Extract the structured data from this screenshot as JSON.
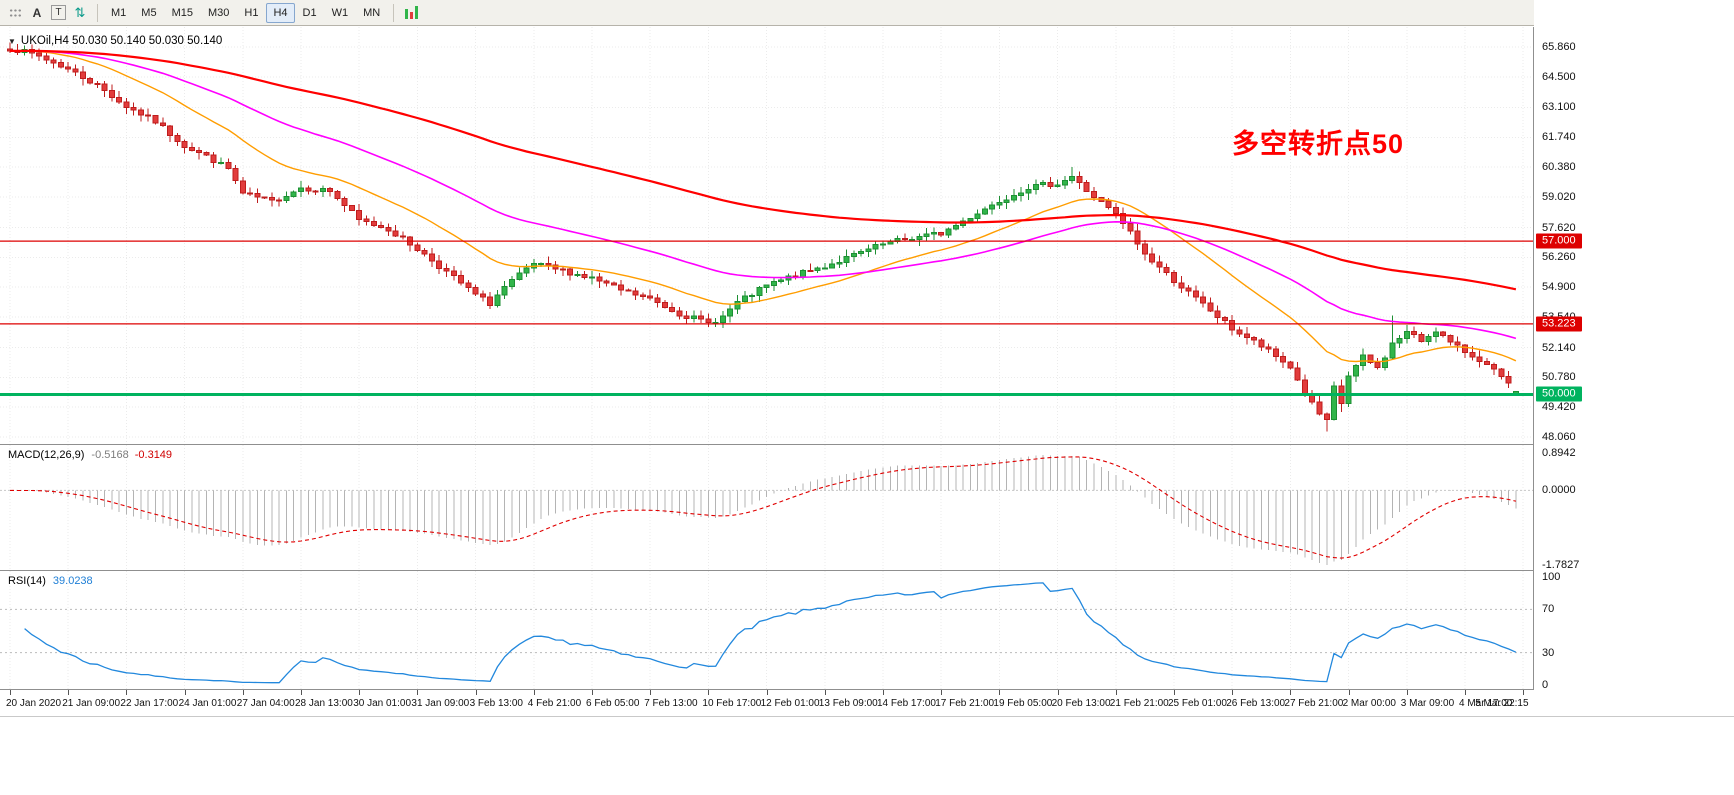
{
  "toolbar": {
    "tools": [
      {
        "name": "grid-handle-icon",
        "glyph": ""
      },
      {
        "name": "annotation-tool-button",
        "glyph": "A"
      },
      {
        "name": "text-frame-tool-button",
        "glyph": "T"
      },
      {
        "name": "sort-arrows-icon",
        "glyph": "⇅"
      }
    ],
    "timeframes": [
      "M1",
      "M5",
      "M15",
      "M30",
      "H1",
      "H4",
      "D1",
      "W1",
      "MN"
    ],
    "active_timeframe": "H4"
  },
  "chart_data": {
    "type": "candlestick",
    "symbol": "UKOil",
    "timeframe": "H4",
    "title": "UKOil,H4  50.030 50.140 50.030 50.140",
    "current_ohlc": {
      "open": 50.03,
      "high": 50.14,
      "low": 50.03,
      "close": 50.14
    },
    "bar_count": 208,
    "bars_per_x_label": 8,
    "x_axis_labels": [
      "20 Jan 2020",
      "21 Jan 09:00",
      "22 Jan 17:00",
      "24 Jan 01:00",
      "27 Jan 04:00",
      "28 Jan 13:00",
      "30 Jan 01:00",
      "31 Jan 09:00",
      "3 Feb 13:00",
      "4 Feb 21:00",
      "6 Feb 05:00",
      "7 Feb 13:00",
      "10 Feb 17:00",
      "12 Feb 01:00",
      "13 Feb 09:00",
      "14 Feb 17:00",
      "17 Feb 21:00",
      "19 Feb 05:00",
      "20 Feb 13:00",
      "21 Feb 21:00",
      "25 Feb 01:00",
      "26 Feb 13:00",
      "27 Feb 21:00",
      "2 Mar 00:00",
      "3 Mar 09:00",
      "4 Mar 17:00",
      "5 Mar 22:15"
    ],
    "y_axis_labels": [
      65.86,
      64.5,
      63.1,
      61.74,
      60.38,
      59.02,
      57.62,
      56.26,
      54.9,
      53.54,
      52.14,
      50.78,
      49.42,
      48.06
    ],
    "close_path_anchors": [
      [
        0,
        65.8
      ],
      [
        4,
        65.45
      ],
      [
        8,
        64.85
      ],
      [
        12,
        64.1
      ],
      [
        16,
        63.15
      ],
      [
        20,
        62.45
      ],
      [
        24,
        61.35
      ],
      [
        28,
        60.7
      ],
      [
        30,
        60.3
      ],
      [
        32,
        59.15
      ],
      [
        36,
        58.8
      ],
      [
        40,
        59.45
      ],
      [
        44,
        59.3
      ],
      [
        48,
        57.95
      ],
      [
        52,
        57.55
      ],
      [
        56,
        56.65
      ],
      [
        60,
        55.6
      ],
      [
        64,
        54.55
      ],
      [
        66,
        54.15
      ],
      [
        68,
        54.9
      ],
      [
        72,
        55.95
      ],
      [
        76,
        55.65
      ],
      [
        80,
        55.3
      ],
      [
        84,
        54.75
      ],
      [
        88,
        54.35
      ],
      [
        92,
        53.7
      ],
      [
        96,
        53.25
      ],
      [
        98,
        53.55
      ],
      [
        100,
        54.2
      ],
      [
        104,
        54.95
      ],
      [
        108,
        55.45
      ],
      [
        112,
        55.85
      ],
      [
        116,
        56.35
      ],
      [
        120,
        56.85
      ],
      [
        124,
        57.15
      ],
      [
        128,
        57.35
      ],
      [
        132,
        58.1
      ],
      [
        136,
        58.85
      ],
      [
        140,
        59.45
      ],
      [
        144,
        59.65
      ],
      [
        146,
        59.95
      ],
      [
        148,
        59.3
      ],
      [
        152,
        58.2
      ],
      [
        154,
        57.4
      ],
      [
        156,
        56.4
      ],
      [
        160,
        55.2
      ],
      [
        164,
        54.1
      ],
      [
        168,
        53.0
      ],
      [
        172,
        52.2
      ],
      [
        176,
        51.25
      ],
      [
        178,
        50.05
      ],
      [
        180,
        49.1
      ],
      [
        181,
        48.75
      ],
      [
        182,
        50.3
      ],
      [
        183,
        49.6
      ],
      [
        184,
        50.85
      ],
      [
        186,
        51.7
      ],
      [
        188,
        51.2
      ],
      [
        190,
        52.3
      ],
      [
        192,
        52.85
      ],
      [
        194,
        52.45
      ],
      [
        196,
        52.95
      ],
      [
        198,
        52.35
      ],
      [
        200,
        51.95
      ],
      [
        202,
        51.6
      ],
      [
        204,
        51.05
      ],
      [
        206,
        50.45
      ],
      [
        207,
        50.14
      ]
    ],
    "wick_extremes": [
      {
        "bar": 146,
        "high": 60.38
      },
      {
        "bar": 181,
        "low": 48.3
      },
      {
        "bar": 183,
        "low": 49.2
      },
      {
        "bar": 190,
        "high": 53.6
      }
    ],
    "horizontal_lines": [
      {
        "price": 57.0,
        "label": "57.000",
        "color": "#dd0000",
        "width": 1.2
      },
      {
        "price": 53.223,
        "label": "53.223",
        "color": "#dd0000",
        "width": 1.2
      },
      {
        "price": 50.0,
        "label": "50.000",
        "color": "#00b35f",
        "width": 3
      }
    ],
    "moving_averages": [
      {
        "name": "ma-fast",
        "period": 20,
        "color": "#ff9d00",
        "width": 1.4
      },
      {
        "name": "ma-medium",
        "period": 50,
        "color": "#ff00ff",
        "width": 1.6
      },
      {
        "name": "ma-slow",
        "period": 130,
        "color": "#ff0000",
        "width": 2.2
      }
    ],
    "annotation": {
      "text": "多空转折点50",
      "color": "#ff0000",
      "font_size": 27
    },
    "candle_colors": {
      "up": "#31b54a",
      "up_stroke": "#1d8f33",
      "down": "#e23c3c",
      "down_stroke": "#bf1d1d"
    },
    "indicators": {
      "macd": {
        "label": "MACD(12,26,9)",
        "fast": 12,
        "slow": 26,
        "signal": 9,
        "current_main": "-0.5168",
        "current_signal": "-0.3149",
        "axis_values": [
          0.8942,
          0,
          -1.7827
        ],
        "axis_labels": [
          "0.8942",
          "0.0000",
          "-1.7827"
        ],
        "axis_max": 0.8942,
        "axis_min": -1.7827,
        "histogram_color": "#b4b4b4",
        "signal_color": "#e00000"
      },
      "rsi": {
        "label": "RSI(14)",
        "period": 14,
        "current": "39.0238",
        "axis_values": [
          100,
          70,
          30,
          0
        ],
        "axis_labels": [
          "100",
          "70",
          "30",
          "0"
        ],
        "levels": [
          70,
          30
        ],
        "color": "#2288dd",
        "level_color": "#bbbbbb"
      }
    },
    "grid_color": "#ebebeb",
    "noise_seed": 7
  }
}
